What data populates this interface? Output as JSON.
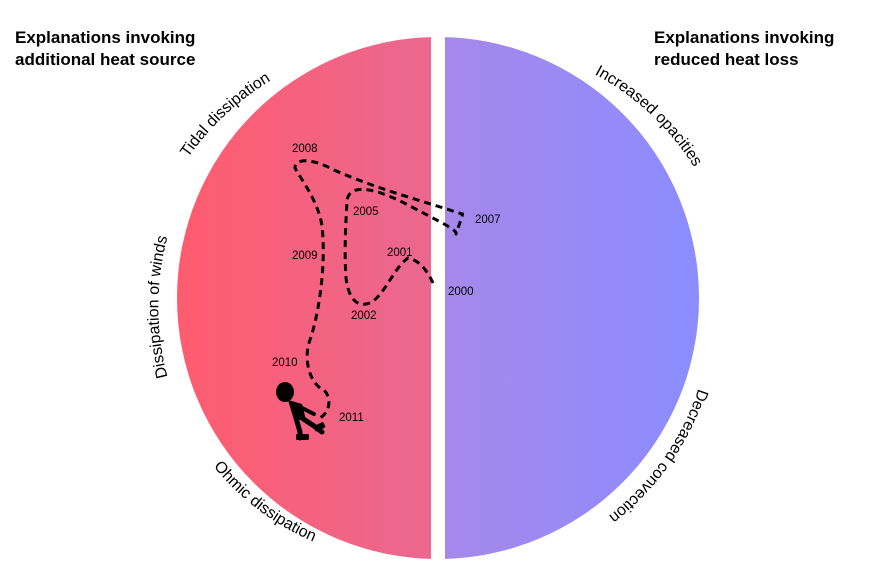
{
  "headings": {
    "left": [
      "Explanations invoking",
      "additional heat source"
    ],
    "right": [
      "Explanations invoking",
      "reduced heat loss"
    ]
  },
  "arc_labels": {
    "tidal": "Tidal dissipation",
    "winds": "Dissipation of winds",
    "ohmic": "Ohmic dissipation",
    "opacities": "Increased opacities",
    "convection": "Decreased convection"
  },
  "years": {
    "y2000": "2000",
    "y2001": "2001",
    "y2002": "2002",
    "y2005": "2005",
    "y2007": "2007",
    "y2008": "2008",
    "y2009": "2009",
    "y2010": "2010",
    "y2011": "2011"
  },
  "colors": {
    "left_gradient_start": "#ff5c6e",
    "left_gradient_end": "#d574b4",
    "right_gradient_start": "#c383d4",
    "right_gradient_end": "#8b8cff",
    "path": "#000000",
    "divider": "#ffffff"
  },
  "icons": {
    "walker": "walking-person-icon"
  }
}
